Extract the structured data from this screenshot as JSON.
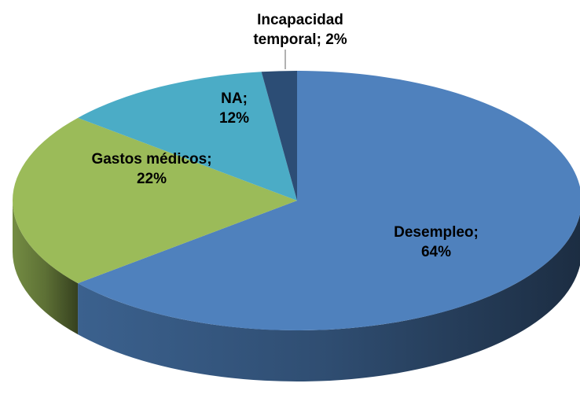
{
  "chart_data": {
    "type": "pie3d",
    "categories": [
      "Desempleo",
      "Gastos médicos",
      "NA",
      "Incapacidad temporal"
    ],
    "values": [
      64,
      22,
      12,
      2
    ],
    "value_labels": [
      "64%",
      "22%",
      "12%",
      "2%"
    ],
    "label_separator": ";",
    "colors": [
      "#4f81bd",
      "#9bbb59",
      "#4bacc6",
      "#2c4d75"
    ]
  }
}
